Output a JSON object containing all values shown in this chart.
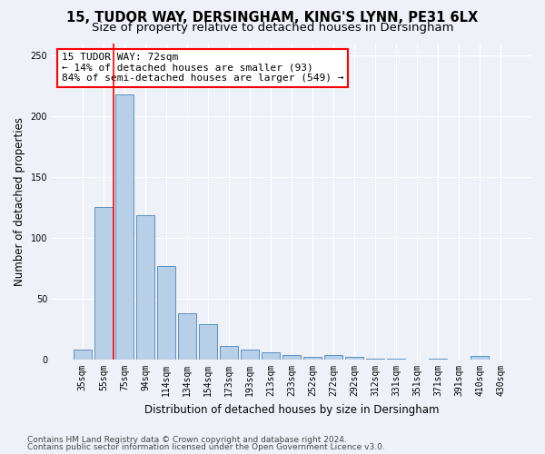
{
  "title1": "15, TUDOR WAY, DERSINGHAM, KING'S LYNN, PE31 6LX",
  "title2": "Size of property relative to detached houses in Dersingham",
  "xlabel": "Distribution of detached houses by size in Dersingham",
  "ylabel": "Number of detached properties",
  "categories": [
    "35sqm",
    "55sqm",
    "75sqm",
    "94sqm",
    "114sqm",
    "134sqm",
    "154sqm",
    "173sqm",
    "193sqm",
    "213sqm",
    "233sqm",
    "252sqm",
    "272sqm",
    "292sqm",
    "312sqm",
    "331sqm",
    "351sqm",
    "371sqm",
    "391sqm",
    "410sqm",
    "430sqm"
  ],
  "values": [
    8,
    125,
    218,
    119,
    77,
    38,
    29,
    11,
    8,
    6,
    4,
    2,
    4,
    2,
    1,
    1,
    0,
    1,
    0,
    3,
    0
  ],
  "bar_color": "#b8cfe8",
  "bar_edge_color": "#5a8fc0",
  "red_line_x": 1.5,
  "annotation_text": "15 TUDOR WAY: 72sqm\n← 14% of detached houses are smaller (93)\n84% of semi-detached houses are larger (549) →",
  "annotation_box_color": "white",
  "annotation_edge_color": "red",
  "footer1": "Contains HM Land Registry data © Crown copyright and database right 2024.",
  "footer2": "Contains public sector information licensed under the Open Government Licence v3.0.",
  "background_color": "#eef2f8",
  "ylim": [
    0,
    260
  ],
  "grid_color": "#ffffff",
  "title_fontsize": 10.5,
  "subtitle_fontsize": 9.5,
  "axis_label_fontsize": 8.5,
  "tick_fontsize": 7,
  "footer_fontsize": 6.5,
  "annotation_fontsize": 8
}
